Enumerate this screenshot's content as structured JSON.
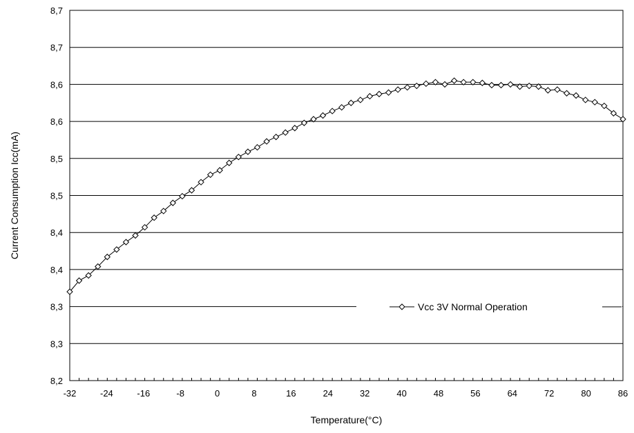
{
  "chart_data": {
    "type": "line",
    "title": "",
    "xlabel": "Temperature(°C)",
    "ylabel": "Current Consumption Icc(mA)",
    "x_tick_labels": [
      "-32",
      "-24",
      "-16",
      "-8",
      "0",
      "8",
      "16",
      "24",
      "32",
      "40",
      "48",
      "56",
      "64",
      "72",
      "80",
      "86"
    ],
    "y_tick_labels": [
      "8,2",
      "8,3",
      "8,3",
      "8,4",
      "8,4",
      "8,5",
      "8,5",
      "8,6",
      "8,6",
      "8,7",
      "8,7"
    ],
    "xlim": [
      -32,
      86
    ],
    "ylim": [
      8.2,
      8.7
    ],
    "grid": true,
    "legend_position": "right",
    "series": [
      {
        "name": "Vcc 3V Normal Operation",
        "color": "#000000",
        "marker": "diamond-open",
        "x": [
          -32,
          -30,
          -28,
          -26,
          -24,
          -22,
          -20,
          -18,
          -16,
          -14,
          -12,
          -10,
          -8,
          -6,
          -4,
          -2,
          0,
          2,
          4,
          6,
          8,
          10,
          12,
          14,
          16,
          18,
          20,
          22,
          24,
          26,
          28,
          30,
          32,
          34,
          36,
          38,
          40,
          42,
          44,
          46,
          48,
          50,
          52,
          54,
          56,
          58,
          60,
          62,
          64,
          66,
          68,
          70,
          72,
          74,
          76,
          78,
          80,
          82,
          84,
          86
        ],
        "y": [
          8.32,
          8.335,
          8.342,
          8.354,
          8.367,
          8.377,
          8.387,
          8.396,
          8.407,
          8.42,
          8.429,
          8.44,
          8.449,
          8.457,
          8.468,
          8.478,
          8.484,
          8.494,
          8.502,
          8.509,
          8.515,
          8.523,
          8.529,
          8.535,
          8.541,
          8.548,
          8.553,
          8.558,
          8.564,
          8.569,
          8.575,
          8.579,
          8.584,
          8.587,
          8.589,
          8.593,
          8.596,
          8.598,
          8.601,
          8.603,
          8.6,
          8.605,
          8.603,
          8.603,
          8.602,
          8.599,
          8.599,
          8.6,
          8.597,
          8.598,
          8.597,
          8.592,
          8.593,
          8.588,
          8.585,
          8.579,
          8.576,
          8.571,
          8.561,
          8.553
        ]
      }
    ]
  }
}
